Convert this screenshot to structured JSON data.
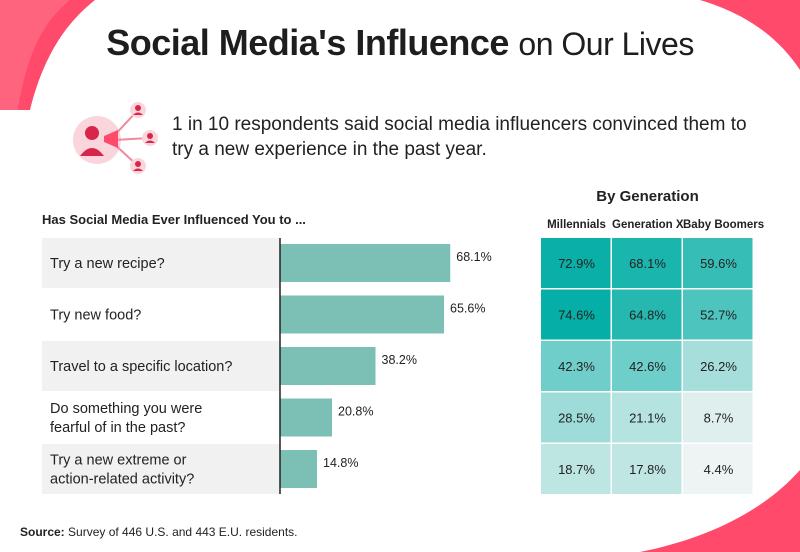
{
  "title_bold": "Social Media's Influence",
  "title_light": "on Our Lives",
  "callout_text": "1 in 10 respondents said social media influencers convinced them to try a new experience in the past year.",
  "colors": {
    "bar": "#7bbfb5",
    "row_shade": "#f1f1f1",
    "accent_red": "#ff4a6b",
    "icon_red": "#d7264a",
    "icon_bg": "#fbd5dc"
  },
  "chart_data": {
    "type": "bar",
    "title": "Has Social Media Ever Influenced You to ...",
    "categories": [
      [
        "Try a new recipe?"
      ],
      [
        "Try new food?"
      ],
      [
        "Travel to a specific location?"
      ],
      [
        "Do something you were",
        "fearful of in the past?"
      ],
      [
        "Try a new extreme or",
        "action-related activity?"
      ]
    ],
    "values": [
      68.1,
      65.6,
      38.2,
      20.8,
      14.8
    ],
    "value_labels": [
      "68.1%",
      "65.6%",
      "38.2%",
      "20.8%",
      "14.8%"
    ],
    "xlim": [
      0,
      100
    ],
    "generation": {
      "title": "By Generation",
      "columns": [
        "Millennials",
        "Generation X",
        "Baby Boomers"
      ],
      "values": [
        [
          72.9,
          68.1,
          59.6
        ],
        [
          74.6,
          64.8,
          52.7
        ],
        [
          42.3,
          42.6,
          26.2
        ],
        [
          28.5,
          21.1,
          8.7
        ],
        [
          18.7,
          17.8,
          4.4
        ]
      ],
      "labels": [
        [
          "72.9%",
          "68.1%",
          "59.6%"
        ],
        [
          "74.6%",
          "64.8%",
          "52.7%"
        ],
        [
          "42.3%",
          "42.6%",
          "26.2%"
        ],
        [
          "28.5%",
          "21.1%",
          "8.7%"
        ],
        [
          "18.7%",
          "17.8%",
          "4.4%"
        ]
      ]
    }
  },
  "source_label": "Source:",
  "source_text": "Survey of 446 U.S. and 443 E.U. residents."
}
